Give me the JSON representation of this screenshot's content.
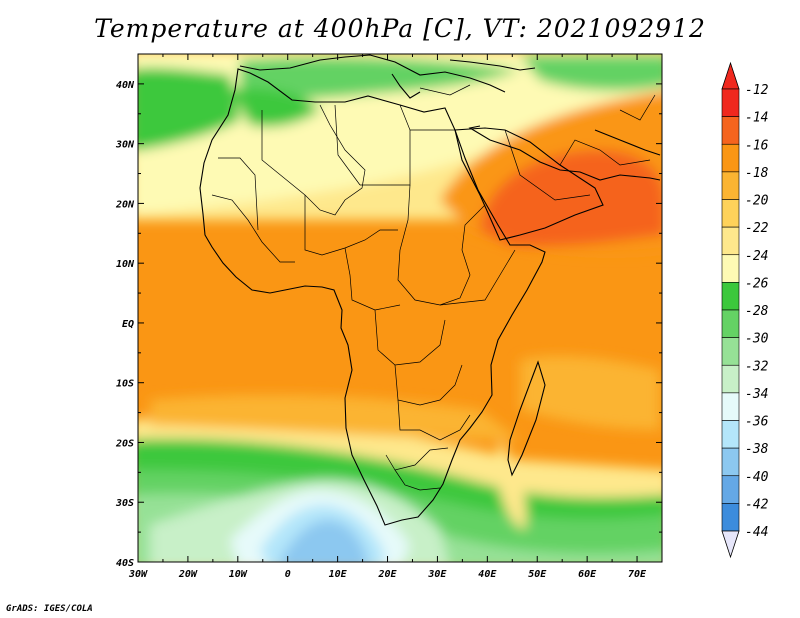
{
  "title": "Temperature at 400hPa [C], VT: 2021092912",
  "credit": "GrADS: IGES/COLA",
  "map": {
    "lon_range": [
      -30,
      75
    ],
    "lat_range": [
      -40,
      45
    ],
    "lon_ticks": [
      {
        "value": -30,
        "label": "30W"
      },
      {
        "value": -20,
        "label": "20W"
      },
      {
        "value": -10,
        "label": "10W"
      },
      {
        "value": 0,
        "label": "0"
      },
      {
        "value": 10,
        "label": "10E"
      },
      {
        "value": 20,
        "label": "20E"
      },
      {
        "value": 30,
        "label": "30E"
      },
      {
        "value": 40,
        "label": "40E"
      },
      {
        "value": 50,
        "label": "50E"
      },
      {
        "value": 60,
        "label": "60E"
      },
      {
        "value": 70,
        "label": "70E"
      }
    ],
    "lat_ticks": [
      {
        "value": 40,
        "label": "40N"
      },
      {
        "value": 30,
        "label": "30N"
      },
      {
        "value": 20,
        "label": "20N"
      },
      {
        "value": 10,
        "label": "10N"
      },
      {
        "value": 0,
        "label": "EQ"
      },
      {
        "value": -10,
        "label": "10S"
      },
      {
        "value": -20,
        "label": "20S"
      },
      {
        "value": -30,
        "label": "30S"
      },
      {
        "value": -40,
        "label": "40S"
      }
    ]
  },
  "colorbar": {
    "labels": [
      "-12",
      "-14",
      "-16",
      "-18",
      "-20",
      "-22",
      "-24",
      "-26",
      "-28",
      "-30",
      "-32",
      "-34",
      "-36",
      "-38",
      "-40",
      "-42",
      "-44"
    ],
    "colors": [
      "#f0281e",
      "#f5641e",
      "#fa9614",
      "#fbb432",
      "#fed25a",
      "#fee88c",
      "#fefab4",
      "#3cc83c",
      "#64d264",
      "#96e196",
      "#c8f0c8",
      "#e6fafa",
      "#b4e6fa",
      "#8cc8f0",
      "#64a8e6",
      "#3c8cdc",
      "#1e64c8",
      "#0a3caa",
      "#0a1e78"
    ],
    "top_color": "#f0281e",
    "bottom_color": "#e6e6fa"
  }
}
